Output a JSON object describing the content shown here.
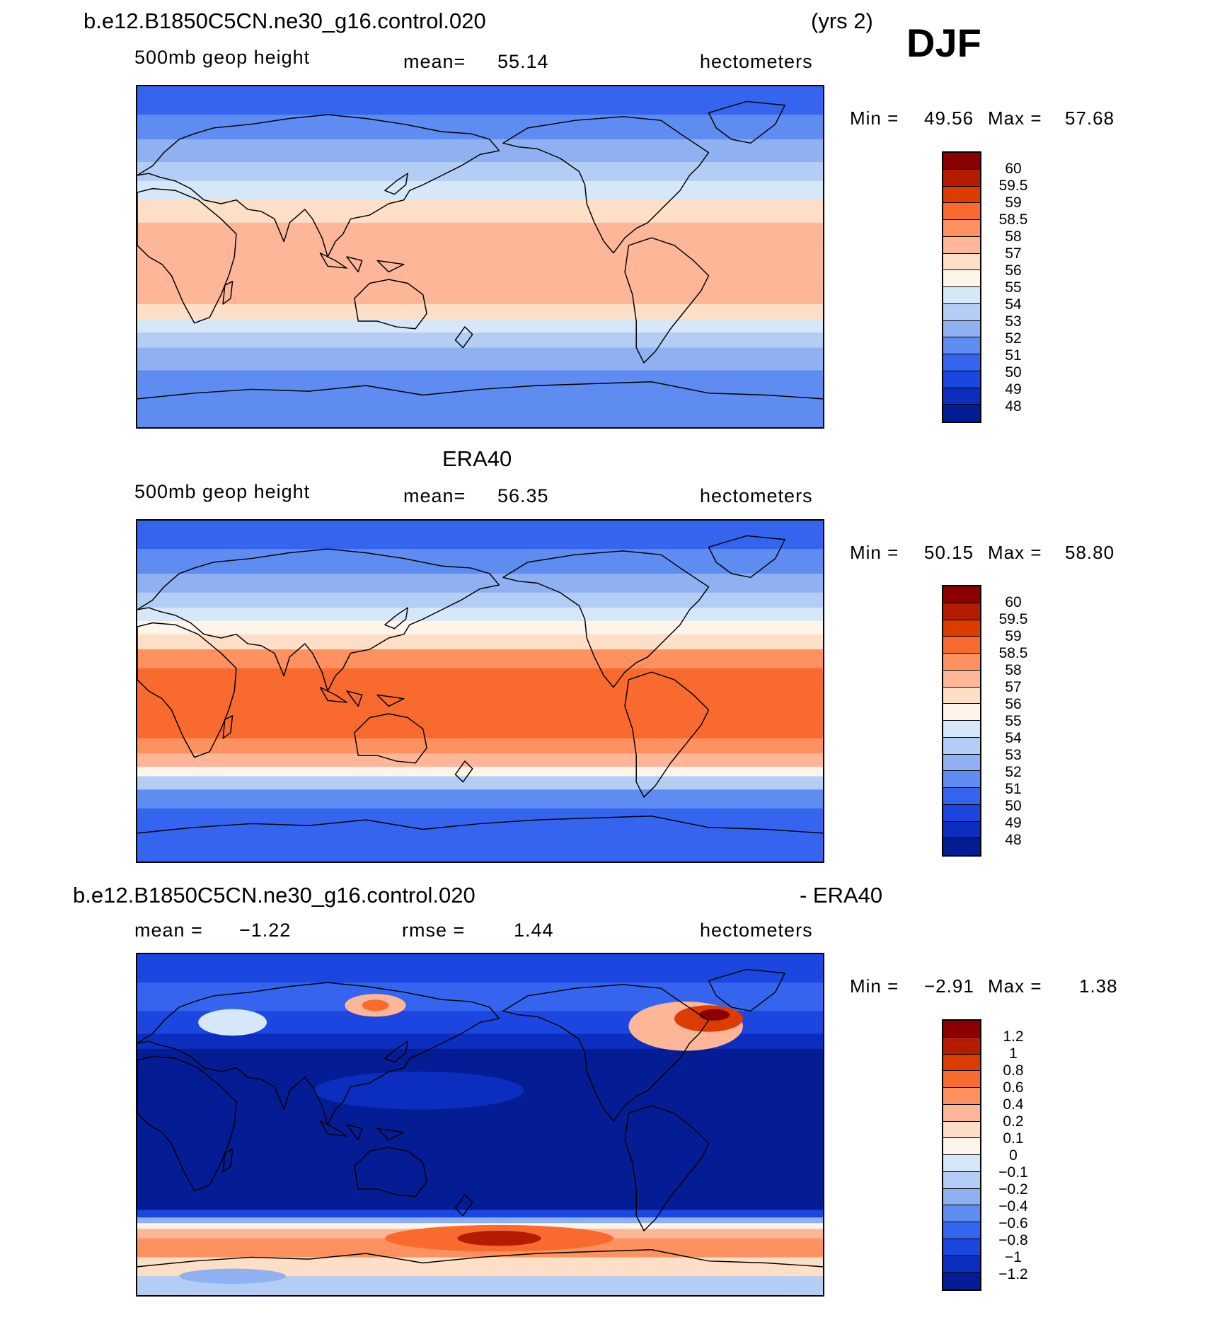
{
  "season": "DJF",
  "top": {
    "case_title": "b.e12.B1850C5CN.ne30_g16.control.020",
    "years": "(yrs 2)",
    "variable": "500mb geop height",
    "mean_label": "mean=",
    "mean_value": "55.14",
    "units": "hectometers",
    "min_label": "Min =",
    "min_value": "49.56",
    "max_label": "Max =",
    "max_value": "57.68",
    "levels": [
      "60",
      "59.5",
      "59",
      "58.5",
      "58",
      "57",
      "56",
      "55",
      "54",
      "53",
      "52",
      "51",
      "50",
      "49",
      "48"
    ],
    "colors": [
      "#8a0000",
      "#b41c00",
      "#dc3c00",
      "#f96a2e",
      "#fd9260",
      "#fdb798",
      "#fddfc8",
      "#fff4ea",
      "#d6e7f8",
      "#b3cdf5",
      "#8fb1f2",
      "#5e8cf0",
      "#3565ef",
      "#1b46e0",
      "#0c2ebf",
      "#041c94"
    ],
    "bands": [
      {
        "lat": 90,
        "level": 12
      },
      {
        "lat": 75,
        "level": 11
      },
      {
        "lat": 62,
        "level": 10
      },
      {
        "lat": 50,
        "level": 9
      },
      {
        "lat": 40,
        "level": 8
      },
      {
        "lat": 30,
        "level": 6
      },
      {
        "lat": 18,
        "level": 5
      },
      {
        "lat": -10,
        "level": 5
      },
      {
        "lat": -25,
        "level": 6
      },
      {
        "lat": -33,
        "level": 8
      },
      {
        "lat": -40,
        "level": 9
      },
      {
        "lat": -48,
        "level": 10
      },
      {
        "lat": -60,
        "level": 11
      },
      {
        "lat": -90,
        "level": 11
      }
    ]
  },
  "middle": {
    "title": "ERA40",
    "variable": "500mb geop height",
    "mean_label": "mean=",
    "mean_value": "56.35",
    "units": "hectometers",
    "min_label": "Min =",
    "min_value": "50.15",
    "max_label": "Max =",
    "max_value": "58.80",
    "levels": [
      "60",
      "59.5",
      "59",
      "58.5",
      "58",
      "57",
      "56",
      "55",
      "54",
      "53",
      "52",
      "51",
      "50",
      "49",
      "48"
    ],
    "colors": [
      "#8a0000",
      "#b41c00",
      "#dc3c00",
      "#f96a2e",
      "#fd9260",
      "#fdb798",
      "#fddfc8",
      "#fff4ea",
      "#d6e7f8",
      "#b3cdf5",
      "#8fb1f2",
      "#5e8cf0",
      "#3565ef",
      "#1b46e0",
      "#0c2ebf",
      "#041c94"
    ],
    "bands": [
      {
        "lat": 90,
        "level": 12
      },
      {
        "lat": 75,
        "level": 11
      },
      {
        "lat": 62,
        "level": 10
      },
      {
        "lat": 52,
        "level": 9
      },
      {
        "lat": 44,
        "level": 8
      },
      {
        "lat": 37,
        "level": 7
      },
      {
        "lat": 30,
        "level": 6
      },
      {
        "lat": 22,
        "level": 4
      },
      {
        "lat": 12,
        "level": 3
      },
      {
        "lat": -15,
        "level": 3
      },
      {
        "lat": -25,
        "level": 4
      },
      {
        "lat": -33,
        "level": 5
      },
      {
        "lat": -40,
        "level": 7
      },
      {
        "lat": -45,
        "level": 9
      },
      {
        "lat": -52,
        "level": 11
      },
      {
        "lat": -62,
        "level": 12
      },
      {
        "lat": -90,
        "level": 12
      }
    ]
  },
  "bottom": {
    "case_title": "b.e12.B1850C5CN.ne30_g16.control.020",
    "minus_title": "- ERA40",
    "mean_label": "mean =",
    "mean_value": "−1.22",
    "rmse_label": "rmse =",
    "rmse_value": "1.44",
    "units": "hectometers",
    "min_label": "Min =",
    "min_value": "−2.91",
    "max_label": "Max =",
    "max_value": "1.38",
    "levels": [
      "1.2",
      "1",
      "0.8",
      "0.6",
      "0.4",
      "0.2",
      "0.1",
      "0",
      "−0.1",
      "−0.2",
      "−0.4",
      "−0.6",
      "−0.8",
      "−1",
      "−1.2"
    ],
    "colors": [
      "#8a0000",
      "#b41c00",
      "#dc3c00",
      "#f96a2e",
      "#fd9260",
      "#fdb798",
      "#fddfc8",
      "#fff4ea",
      "#d6e7f8",
      "#b3cdf5",
      "#8fb1f2",
      "#5e8cf0",
      "#3565ef",
      "#1b46e0",
      "#0c2ebf",
      "#041c94"
    ],
    "bands": [
      {
        "lat": 90,
        "level": 13
      },
      {
        "lat": 75,
        "level": 12
      },
      {
        "lat": 60,
        "level": 13
      },
      {
        "lat": 48,
        "level": 14
      },
      {
        "lat": 40,
        "level": 15
      },
      {
        "lat": -40,
        "level": 15
      },
      {
        "lat": -45,
        "level": 13
      },
      {
        "lat": -49,
        "level": 10
      },
      {
        "lat": -52,
        "level": 7
      },
      {
        "lat": -55,
        "level": 5
      },
      {
        "lat": -60,
        "level": 4
      },
      {
        "lat": -70,
        "level": 6
      },
      {
        "lat": -80,
        "level": 9
      },
      {
        "lat": -90,
        "level": 9
      }
    ]
  }
}
